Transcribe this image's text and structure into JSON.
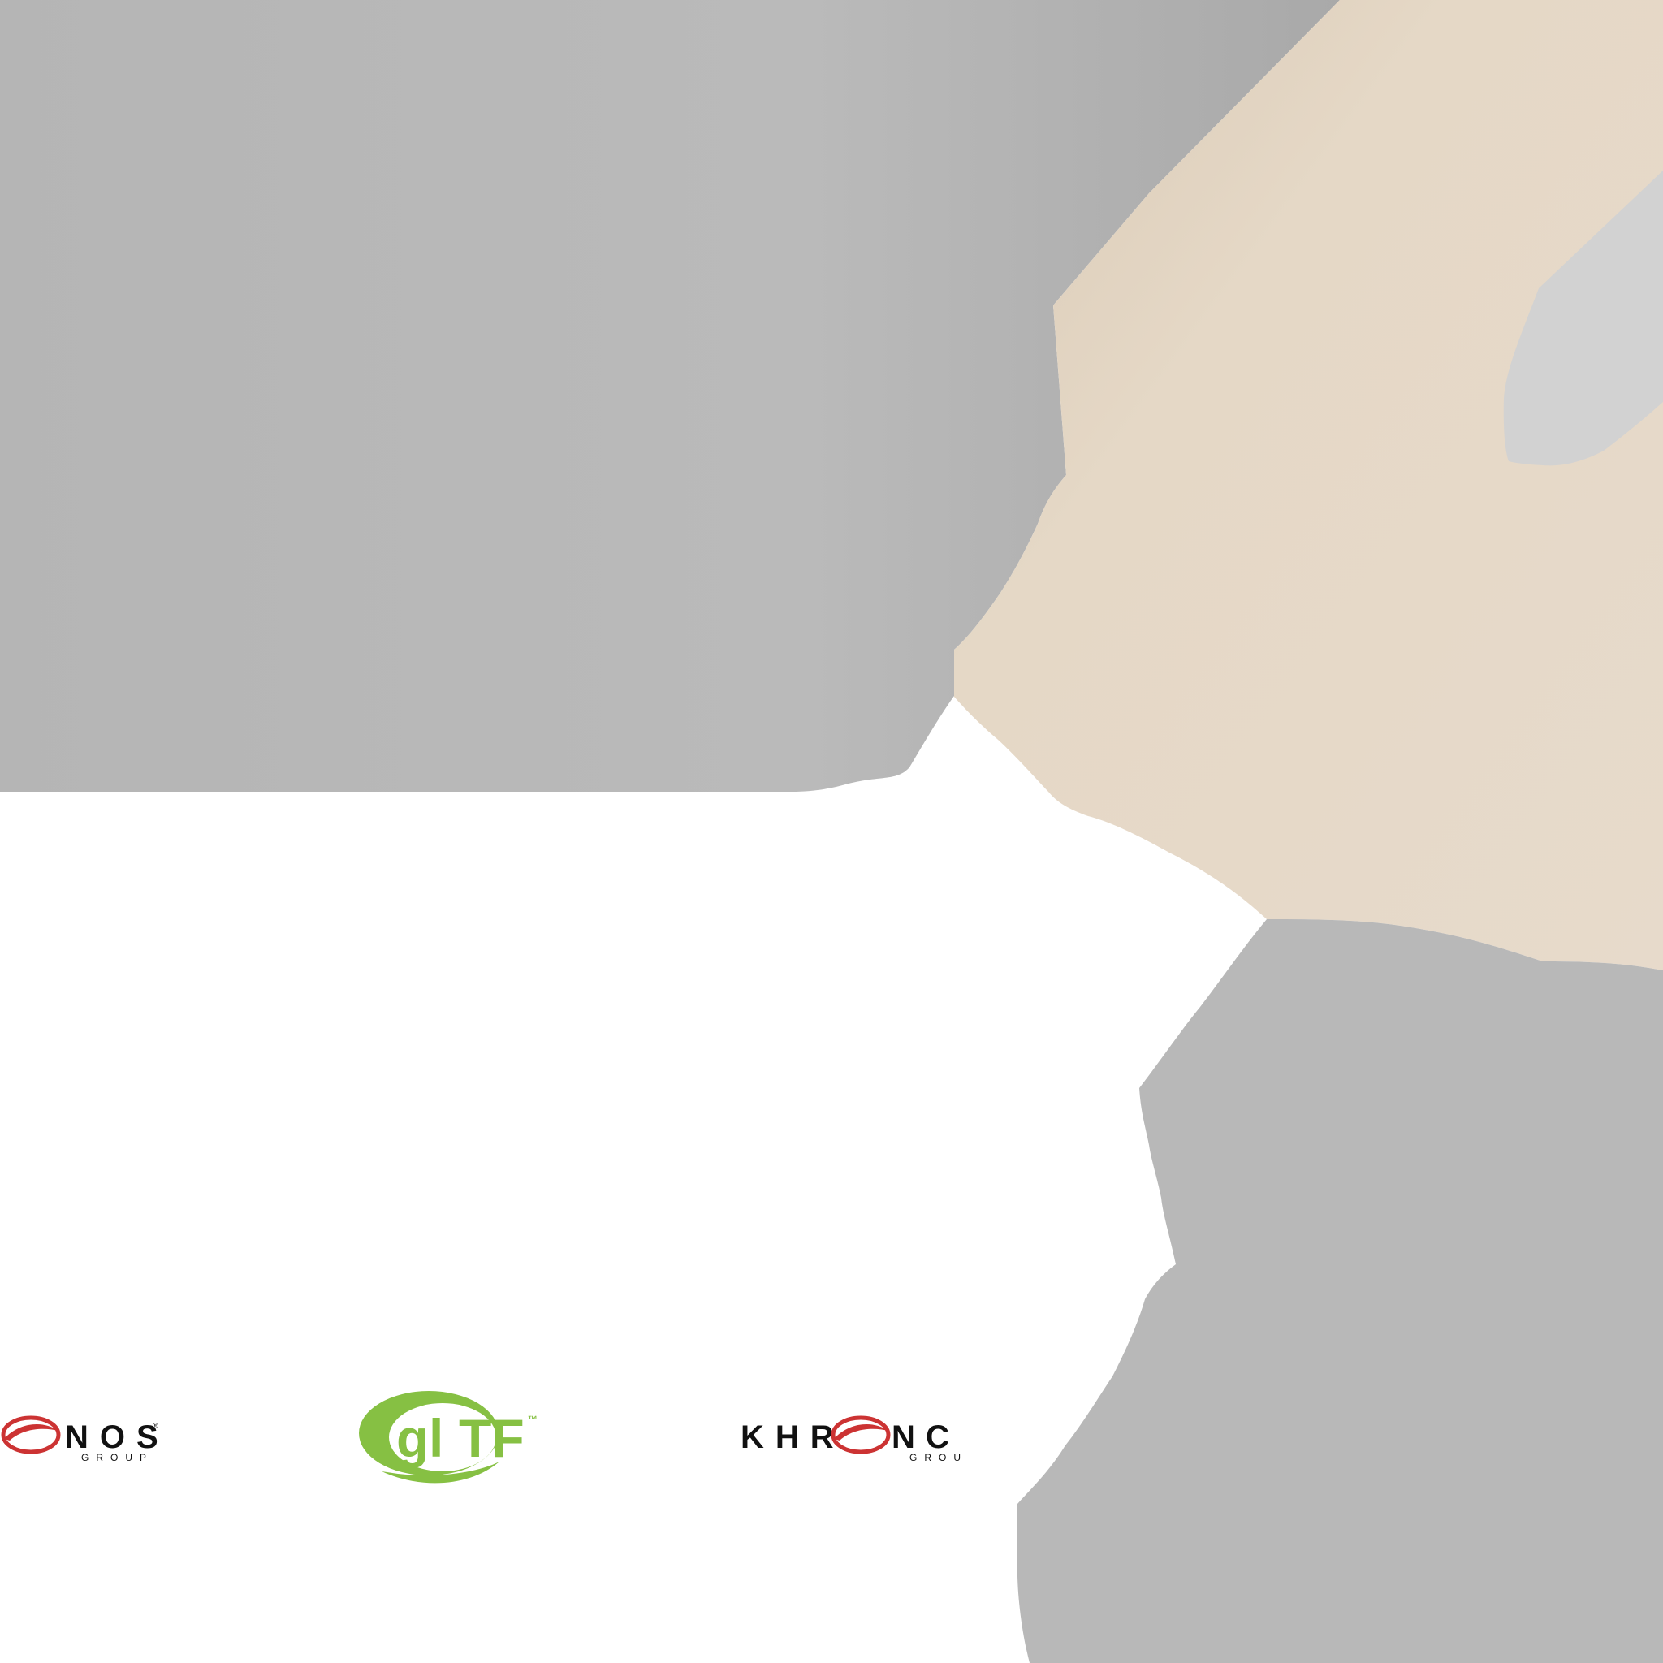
{
  "colors": {
    "background": "#ffffff",
    "gray_panel": "#b8b8b8",
    "beige_panel": "#e6d9c8",
    "light_gray_inset": "#d2d2d2",
    "khronos_red": "#cc3333",
    "khronos_black": "#111111",
    "gltf_green": "#86c043"
  },
  "texture": {
    "regions": [
      {
        "name": "upper-left-gray-island",
        "color_key": "gray_panel"
      },
      {
        "name": "beige-island",
        "color_key": "beige_panel"
      },
      {
        "name": "light-gray-inset",
        "color_key": "light_gray_inset"
      },
      {
        "name": "lower-right-gray-island",
        "color_key": "gray_panel"
      }
    ]
  },
  "logos": {
    "khronos_left": {
      "wordmark": "NOS",
      "registered": "®",
      "subline": "GROUP"
    },
    "gltf": {
      "g": "g",
      "l": "l",
      "tf": "TF",
      "trademark": "™"
    },
    "khronos_right": {
      "wordmark_a": "KHR",
      "wordmark_b": "N",
      "partial_glyph": "C",
      "subline": "GROU"
    }
  }
}
